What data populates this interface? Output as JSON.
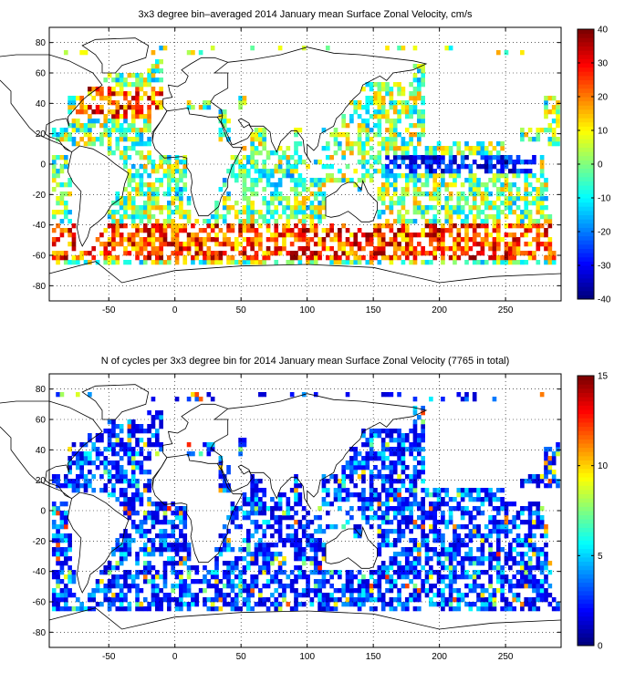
{
  "panels": {
    "top": {
      "title": "3x3 degree bin–averaged 2014 January mean Surface Zonal Velocity, cm/s"
    },
    "bottom": {
      "title": "N of cycles per 3x3 degree bin for 2014 January mean Surface Zonal Velocity (7765 in total)"
    }
  },
  "chart_data": [
    {
      "type": "heatmap",
      "title": "3x3 degree bin–averaged 2014 January mean Surface Zonal Velocity, cm/s",
      "xlabel": "",
      "ylabel": "",
      "xlim": [
        -95,
        292
      ],
      "ylim": [
        -90,
        90
      ],
      "x_ticks": [
        -50,
        0,
        50,
        100,
        150,
        200,
        250
      ],
      "y_ticks": [
        80,
        60,
        40,
        20,
        0,
        -20,
        -40,
        -60,
        -80
      ],
      "grid": "dotted",
      "bin_size_deg": 3,
      "colorbar": {
        "min": -40,
        "max": 40,
        "ticks": [
          40,
          30,
          20,
          10,
          0,
          -10,
          -20,
          -30,
          -40
        ],
        "colormap": "jet"
      },
      "value_ranges_by_band": [
        {
          "lat": [
            30,
            50
          ],
          "lon": [
            -80,
            -20
          ],
          "approx_value": 25
        },
        {
          "lat": [
            -60,
            -40
          ],
          "lon": [
            -70,
            290
          ],
          "approx_value": 20
        },
        {
          "lat": [
            -5,
            5
          ],
          "lon": [
            180,
            270
          ],
          "approx_value": -30
        }
      ]
    },
    {
      "type": "heatmap",
      "title": "N of cycles per 3x3 degree bin for 2014 January mean Surface Zonal Velocity (7765 in total)",
      "xlabel": "",
      "ylabel": "",
      "xlim": [
        -95,
        292
      ],
      "ylim": [
        -90,
        90
      ],
      "x_ticks": [
        -50,
        0,
        50,
        100,
        150,
        200,
        250
      ],
      "y_ticks": [
        80,
        60,
        40,
        20,
        0,
        -20,
        -40,
        -60,
        -80
      ],
      "grid": "dotted",
      "bin_size_deg": 3,
      "total_cycles": 7765,
      "colorbar": {
        "min": 0,
        "max": 15,
        "ticks": [
          15,
          10,
          5,
          0
        ],
        "colormap": "jet"
      }
    }
  ]
}
